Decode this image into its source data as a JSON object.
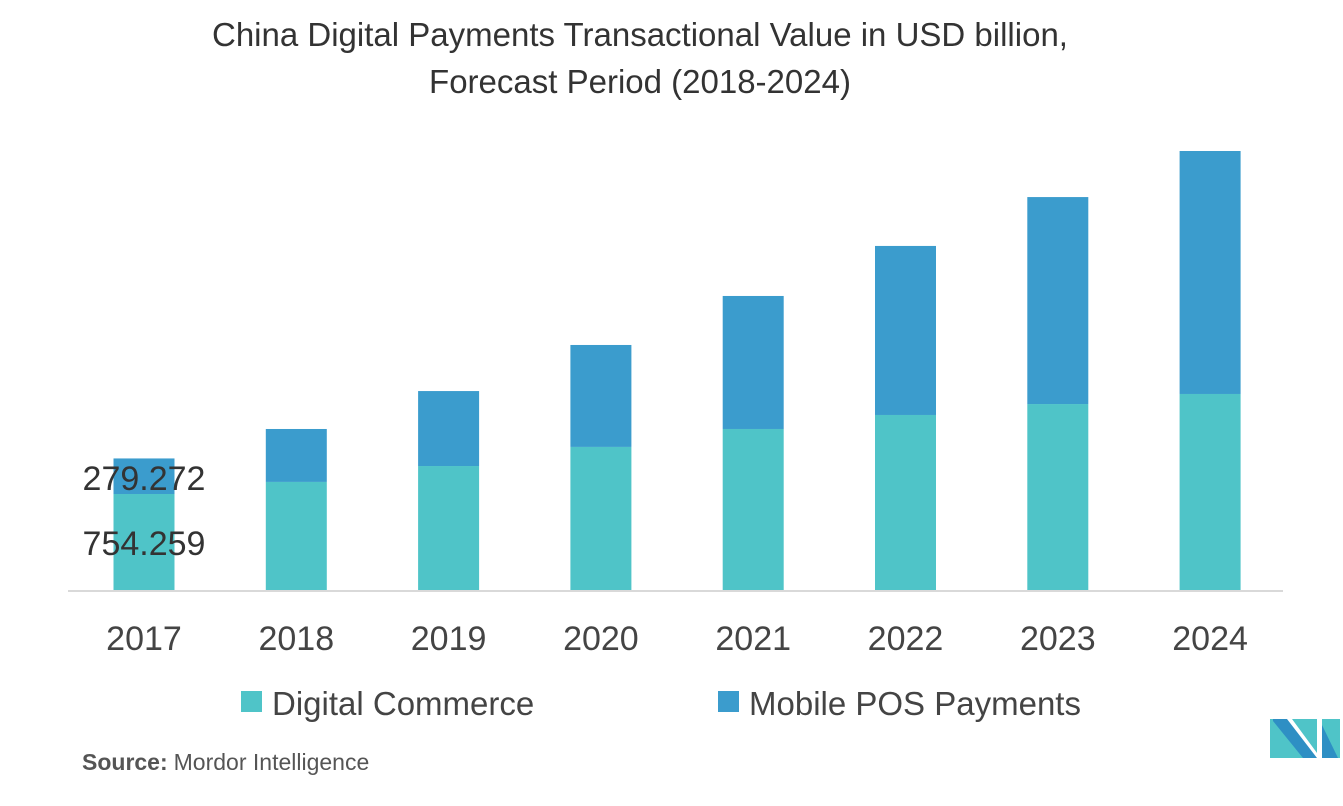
{
  "chart_data": {
    "type": "bar",
    "stacked": true,
    "title": "China Digital Payments Transactional Value in USD billion,",
    "subtitle": "Forecast Period (2018-2024)",
    "xlabel": "",
    "ylabel": "",
    "categories": [
      "2017",
      "2018",
      "2019",
      "2020",
      "2021",
      "2022",
      "2023",
      "2024"
    ],
    "series": [
      {
        "name": "Digital Commerce",
        "color": "#4fc4c8",
        "values": [
          754.259,
          849,
          974,
          1124,
          1265,
          1375,
          1461,
          1540
        ]
      },
      {
        "name": "Mobile POS Payments",
        "color": "#3b9ccd",
        "values": [
          279.272,
          416,
          589,
          801,
          1045,
          1328,
          1626,
          1909
        ]
      }
    ],
    "data_labels": [
      "279.272",
      "754.259"
    ],
    "ylim": [
      0,
      3500
    ],
    "grid": false,
    "legend_position": "bottom"
  },
  "source": {
    "label": "Source:",
    "text": "Mordor Intelligence"
  }
}
